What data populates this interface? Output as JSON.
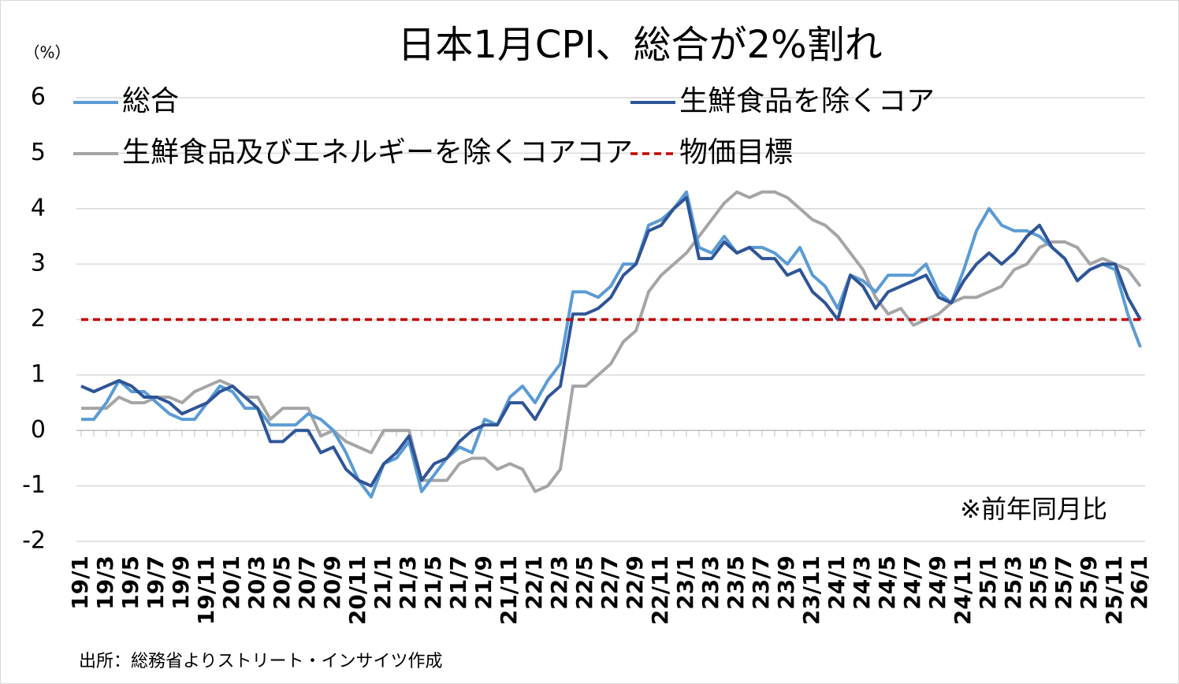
{
  "chart_data": {
    "type": "line",
    "title": "日本1月CPI、総合が2%割れ",
    "y_unit": "（%）",
    "annotation": "※前年同月比",
    "source": "出所：総務省よりストリート・インサイツ作成",
    "categories": [
      "19/1",
      null,
      "19/3",
      null,
      "19/5",
      null,
      "19/7",
      null,
      "19/9",
      null,
      "19/11",
      null,
      "20/1",
      null,
      "20/3",
      null,
      "20/5",
      null,
      "20/7",
      null,
      "20/9",
      null,
      "20/11",
      null,
      "21/1",
      null,
      "21/3",
      null,
      "21/5",
      null,
      "21/7",
      null,
      "21/9",
      null,
      "21/11",
      null,
      "22/1",
      null,
      "22/3",
      null,
      "22/5",
      null,
      "22/7",
      null,
      "22/9",
      null,
      "22/11",
      null,
      "23/1",
      null,
      "23/3",
      null,
      "23/5",
      null,
      "23/7",
      null,
      "23/9",
      null,
      "23/11",
      null,
      "24/1",
      null,
      "24/3",
      null,
      "24/5",
      null,
      "24/7",
      null,
      "24/9",
      null,
      "24/11",
      null,
      "25/1",
      null,
      "25/3",
      null,
      "25/5",
      null,
      "25/7",
      null,
      "25/9",
      null,
      "25/11",
      null,
      "26/1"
    ],
    "series": [
      {
        "name": "総合",
        "color": "#5b9bd5",
        "values": [
          0.2,
          0.2,
          0.5,
          0.9,
          0.7,
          0.7,
          0.5,
          0.3,
          0.2,
          0.2,
          0.5,
          0.8,
          0.7,
          0.4,
          0.4,
          0.1,
          0.1,
          0.1,
          0.3,
          0.2,
          0.0,
          -0.4,
          -0.9,
          -1.2,
          -0.6,
          -0.5,
          -0.2,
          -1.1,
          -0.8,
          -0.5,
          -0.3,
          -0.4,
          0.2,
          0.1,
          0.6,
          0.8,
          0.5,
          0.9,
          1.2,
          2.5,
          2.5,
          2.4,
          2.6,
          3.0,
          3.0,
          3.7,
          3.8,
          4.0,
          4.3,
          3.3,
          3.2,
          3.5,
          3.2,
          3.3,
          3.3,
          3.2,
          3.0,
          3.3,
          2.8,
          2.6,
          2.2,
          2.8,
          2.7,
          2.5,
          2.8,
          2.8,
          2.8,
          3.0,
          2.5,
          2.3,
          2.9,
          3.6,
          4.0,
          3.7,
          3.6,
          3.6,
          3.5,
          3.3,
          3.1,
          2.7,
          2.9,
          3.0,
          2.9,
          2.1,
          1.5
        ]
      },
      {
        "name": "生鮮食品を除くコア",
        "color": "#2f5597",
        "values": [
          0.8,
          0.7,
          0.8,
          0.9,
          0.8,
          0.6,
          0.6,
          0.5,
          0.3,
          0.4,
          0.5,
          0.7,
          0.8,
          0.6,
          0.4,
          -0.2,
          -0.2,
          0.0,
          0.0,
          -0.4,
          -0.3,
          -0.7,
          -0.9,
          -1.0,
          -0.6,
          -0.4,
          -0.1,
          -0.9,
          -0.6,
          -0.5,
          -0.2,
          0.0,
          0.1,
          0.1,
          0.5,
          0.5,
          0.2,
          0.6,
          0.8,
          2.1,
          2.1,
          2.2,
          2.4,
          2.8,
          3.0,
          3.6,
          3.7,
          4.0,
          4.2,
          3.1,
          3.1,
          3.4,
          3.2,
          3.3,
          3.1,
          3.1,
          2.8,
          2.9,
          2.5,
          2.3,
          2.0,
          2.8,
          2.6,
          2.2,
          2.5,
          2.6,
          2.7,
          2.8,
          2.4,
          2.3,
          2.7,
          3.0,
          3.2,
          3.0,
          3.2,
          3.5,
          3.7,
          3.3,
          3.1,
          2.7,
          2.9,
          3.0,
          3.0,
          2.4,
          2.0
        ]
      },
      {
        "name": "生鮮食品及びエネルギーを除くコアコア",
        "color": "#a5a5a5",
        "values": [
          0.4,
          0.4,
          0.4,
          0.6,
          0.5,
          0.5,
          0.6,
          0.6,
          0.5,
          0.7,
          0.8,
          0.9,
          0.8,
          0.6,
          0.6,
          0.2,
          0.4,
          0.4,
          0.4,
          -0.1,
          0.0,
          -0.2,
          -0.3,
          -0.4,
          0.0,
          0.0,
          0.0,
          -0.9,
          -0.9,
          -0.9,
          -0.6,
          -0.5,
          -0.5,
          -0.7,
          -0.6,
          -0.7,
          -1.1,
          -1.0,
          -0.7,
          0.8,
          0.8,
          1.0,
          1.2,
          1.6,
          1.8,
          2.5,
          2.8,
          3.0,
          3.2,
          3.5,
          3.8,
          4.1,
          4.3,
          4.2,
          4.3,
          4.3,
          4.2,
          4.0,
          3.8,
          3.7,
          3.5,
          3.2,
          2.9,
          2.4,
          2.1,
          2.2,
          1.9,
          2.0,
          2.1,
          2.3,
          2.4,
          2.4,
          2.5,
          2.6,
          2.9,
          3.0,
          3.3,
          3.4,
          3.4,
          3.3,
          3.0,
          3.1,
          3.0,
          2.9,
          2.6
        ]
      }
    ],
    "target": {
      "name": "物価目標",
      "color": "#c00000",
      "value": 2
    },
    "ylim": [
      -2,
      6
    ],
    "yticks": [
      -2,
      -1,
      0,
      1,
      2,
      3,
      4,
      5,
      6
    ],
    "grid": true
  }
}
